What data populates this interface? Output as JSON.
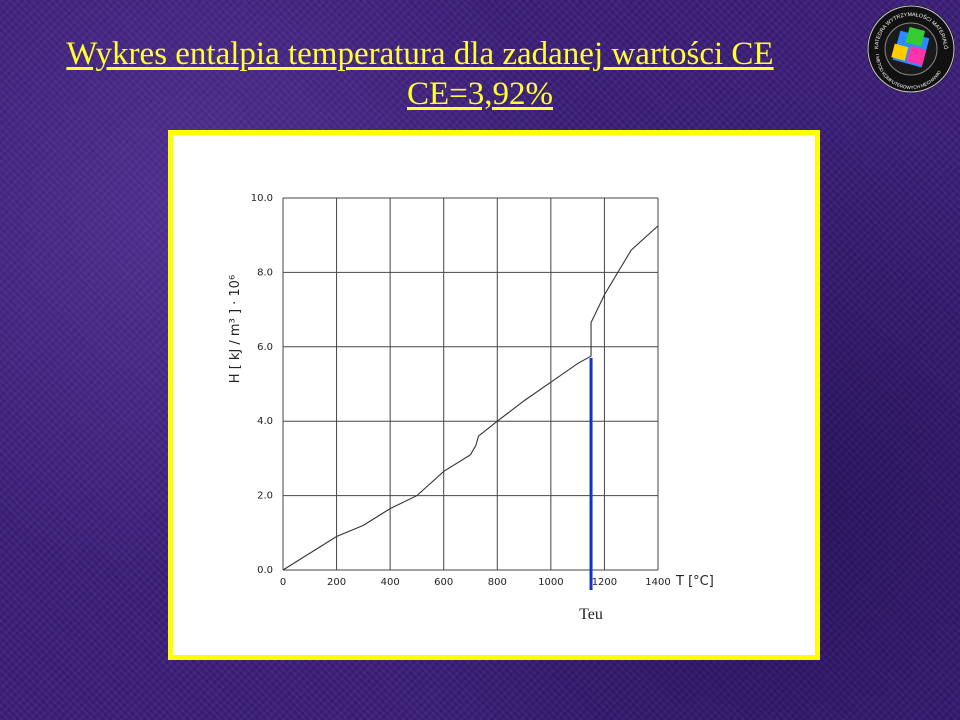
{
  "slide": {
    "title_line1": "Wykres entalpia temperatura dla zadanej wartości CE",
    "title_line2": "CE=3,92%",
    "logo_icon": "university-department-seal-icon",
    "logo_text_top": "KATEDRA WYTRZYMAŁOŚCI MATERIAŁÓW",
    "logo_text_bottom": "I METOD KOMPUTEROWYCH MECHANIKI",
    "title_color": "#ffff33",
    "frame_color": "#ffff00",
    "marker_color": "#1133cc"
  },
  "chart_data": {
    "type": "line",
    "title": "",
    "xlabel": "T [°C]",
    "ylabel": "H [ kJ / m³ ] · 10⁶",
    "xlim": [
      0,
      1400
    ],
    "ylim": [
      0,
      10
    ],
    "x_ticks": [
      0,
      200,
      400,
      600,
      800,
      1000,
      1200,
      1400
    ],
    "y_ticks": [
      0,
      2,
      4,
      6,
      8,
      10
    ],
    "x_tick_labels": [
      "0",
      "200",
      "400",
      "600",
      "800",
      "1000",
      "1200",
      "1400"
    ],
    "y_tick_labels": [
      "0.0",
      "2.0",
      "4.0",
      "6.0",
      "8.0",
      "10.0"
    ],
    "grid": true,
    "series": [
      {
        "x": [
          0,
          200,
          300,
          400,
          500,
          600,
          700,
          720,
          730,
          800,
          900,
          1000,
          1100,
          1150,
          1150,
          1200,
          1300,
          1400
        ],
        "y": [
          0,
          0.9,
          1.2,
          1.65,
          2.0,
          2.65,
          3.1,
          3.35,
          3.6,
          4.0,
          4.55,
          5.05,
          5.55,
          5.75,
          6.65,
          7.4,
          8.6,
          9.25
        ]
      }
    ],
    "annotation": {
      "label": "Teu",
      "x": 1150,
      "y_top": 5.7,
      "color": "#1133cc"
    }
  }
}
